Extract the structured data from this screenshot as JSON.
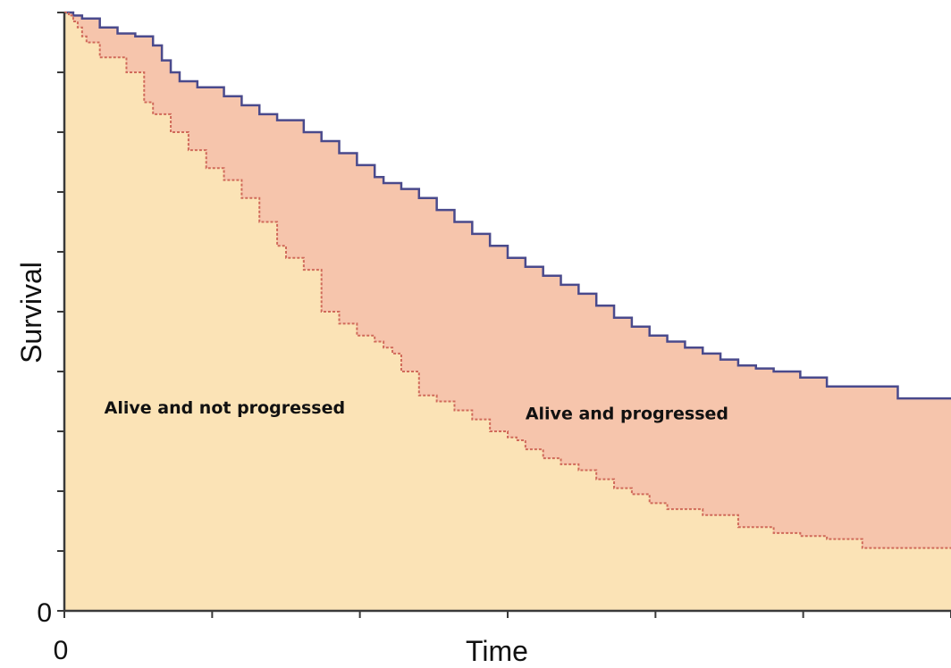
{
  "chart_data": {
    "type": "area",
    "title": "",
    "xlabel": "Time",
    "ylabel": "Survival",
    "xlim": [
      0,
      1
    ],
    "ylim": [
      0,
      1
    ],
    "x_ticks": [
      0,
      0.1667,
      0.3333,
      0.5,
      0.6667,
      0.8333,
      1.0
    ],
    "x_tick_labels": [
      "0",
      "",
      "",
      "",
      "",
      "",
      ""
    ],
    "y_ticks": [
      0,
      0.1,
      0.2,
      0.3,
      0.4,
      0.5,
      0.6,
      0.7,
      0.8,
      0.9,
      1.0
    ],
    "y_tick_labels": [
      "0",
      "",
      "",
      "",
      "",
      "",
      "",
      "",
      "",
      "",
      ""
    ],
    "grid": false,
    "legend": "none",
    "colors": {
      "overall_line": "#4a4a8c",
      "pfs_line": "#d06a5a",
      "progressed_fill": "#f6c5ac",
      "not_progressed_fill": "#fbe3b6"
    },
    "series": [
      {
        "x": [
          0,
          0.01,
          0.02,
          0.04,
          0.06,
          0.08,
          0.1,
          0.11,
          0.12,
          0.13,
          0.15,
          0.18,
          0.2,
          0.22,
          0.24,
          0.27,
          0.29,
          0.31,
          0.33,
          0.35,
          0.36,
          0.38,
          0.4,
          0.42,
          0.44,
          0.46,
          0.48,
          0.5,
          0.52,
          0.54,
          0.56,
          0.58,
          0.6,
          0.62,
          0.64,
          0.66,
          0.68,
          0.7,
          0.72,
          0.74,
          0.76,
          0.78,
          0.8,
          0.83,
          0.86,
          0.9,
          0.94,
          0.97,
          1.0
        ],
        "y": [
          1.0,
          0.995,
          0.99,
          0.975,
          0.965,
          0.96,
          0.945,
          0.92,
          0.9,
          0.885,
          0.875,
          0.86,
          0.845,
          0.83,
          0.82,
          0.8,
          0.785,
          0.765,
          0.745,
          0.725,
          0.715,
          0.705,
          0.69,
          0.67,
          0.65,
          0.63,
          0.61,
          0.59,
          0.575,
          0.56,
          0.545,
          0.53,
          0.51,
          0.49,
          0.475,
          0.46,
          0.45,
          0.44,
          0.43,
          0.42,
          0.41,
          0.405,
          0.4,
          0.39,
          0.375,
          0.375,
          0.355,
          0.355,
          0.355
        ]
      },
      {
        "x": [
          0,
          0.005,
          0.01,
          0.015,
          0.02,
          0.025,
          0.04,
          0.07,
          0.09,
          0.1,
          0.12,
          0.14,
          0.16,
          0.18,
          0.2,
          0.22,
          0.24,
          0.25,
          0.26,
          0.27,
          0.29,
          0.31,
          0.33,
          0.35,
          0.36,
          0.37,
          0.38,
          0.4,
          0.42,
          0.44,
          0.46,
          0.48,
          0.5,
          0.51,
          0.52,
          0.54,
          0.56,
          0.58,
          0.6,
          0.62,
          0.64,
          0.66,
          0.68,
          0.72,
          0.76,
          0.8,
          0.83,
          0.86,
          0.9,
          0.94,
          1.0
        ],
        "y": [
          1.0,
          0.995,
          0.985,
          0.975,
          0.96,
          0.95,
          0.925,
          0.9,
          0.85,
          0.83,
          0.8,
          0.77,
          0.74,
          0.72,
          0.69,
          0.65,
          0.61,
          0.59,
          0.59,
          0.57,
          0.5,
          0.48,
          0.46,
          0.45,
          0.44,
          0.43,
          0.4,
          0.36,
          0.35,
          0.335,
          0.32,
          0.3,
          0.29,
          0.285,
          0.27,
          0.255,
          0.245,
          0.235,
          0.22,
          0.205,
          0.195,
          0.18,
          0.17,
          0.16,
          0.14,
          0.13,
          0.125,
          0.12,
          0.105,
          0.105,
          0.105
        ]
      }
    ],
    "annotations": [
      {
        "text": "Alive and not progressed",
        "x": 0.045,
        "y": 0.33
      },
      {
        "text": "Alive and progressed",
        "x": 0.52,
        "y": 0.32
      }
    ]
  }
}
